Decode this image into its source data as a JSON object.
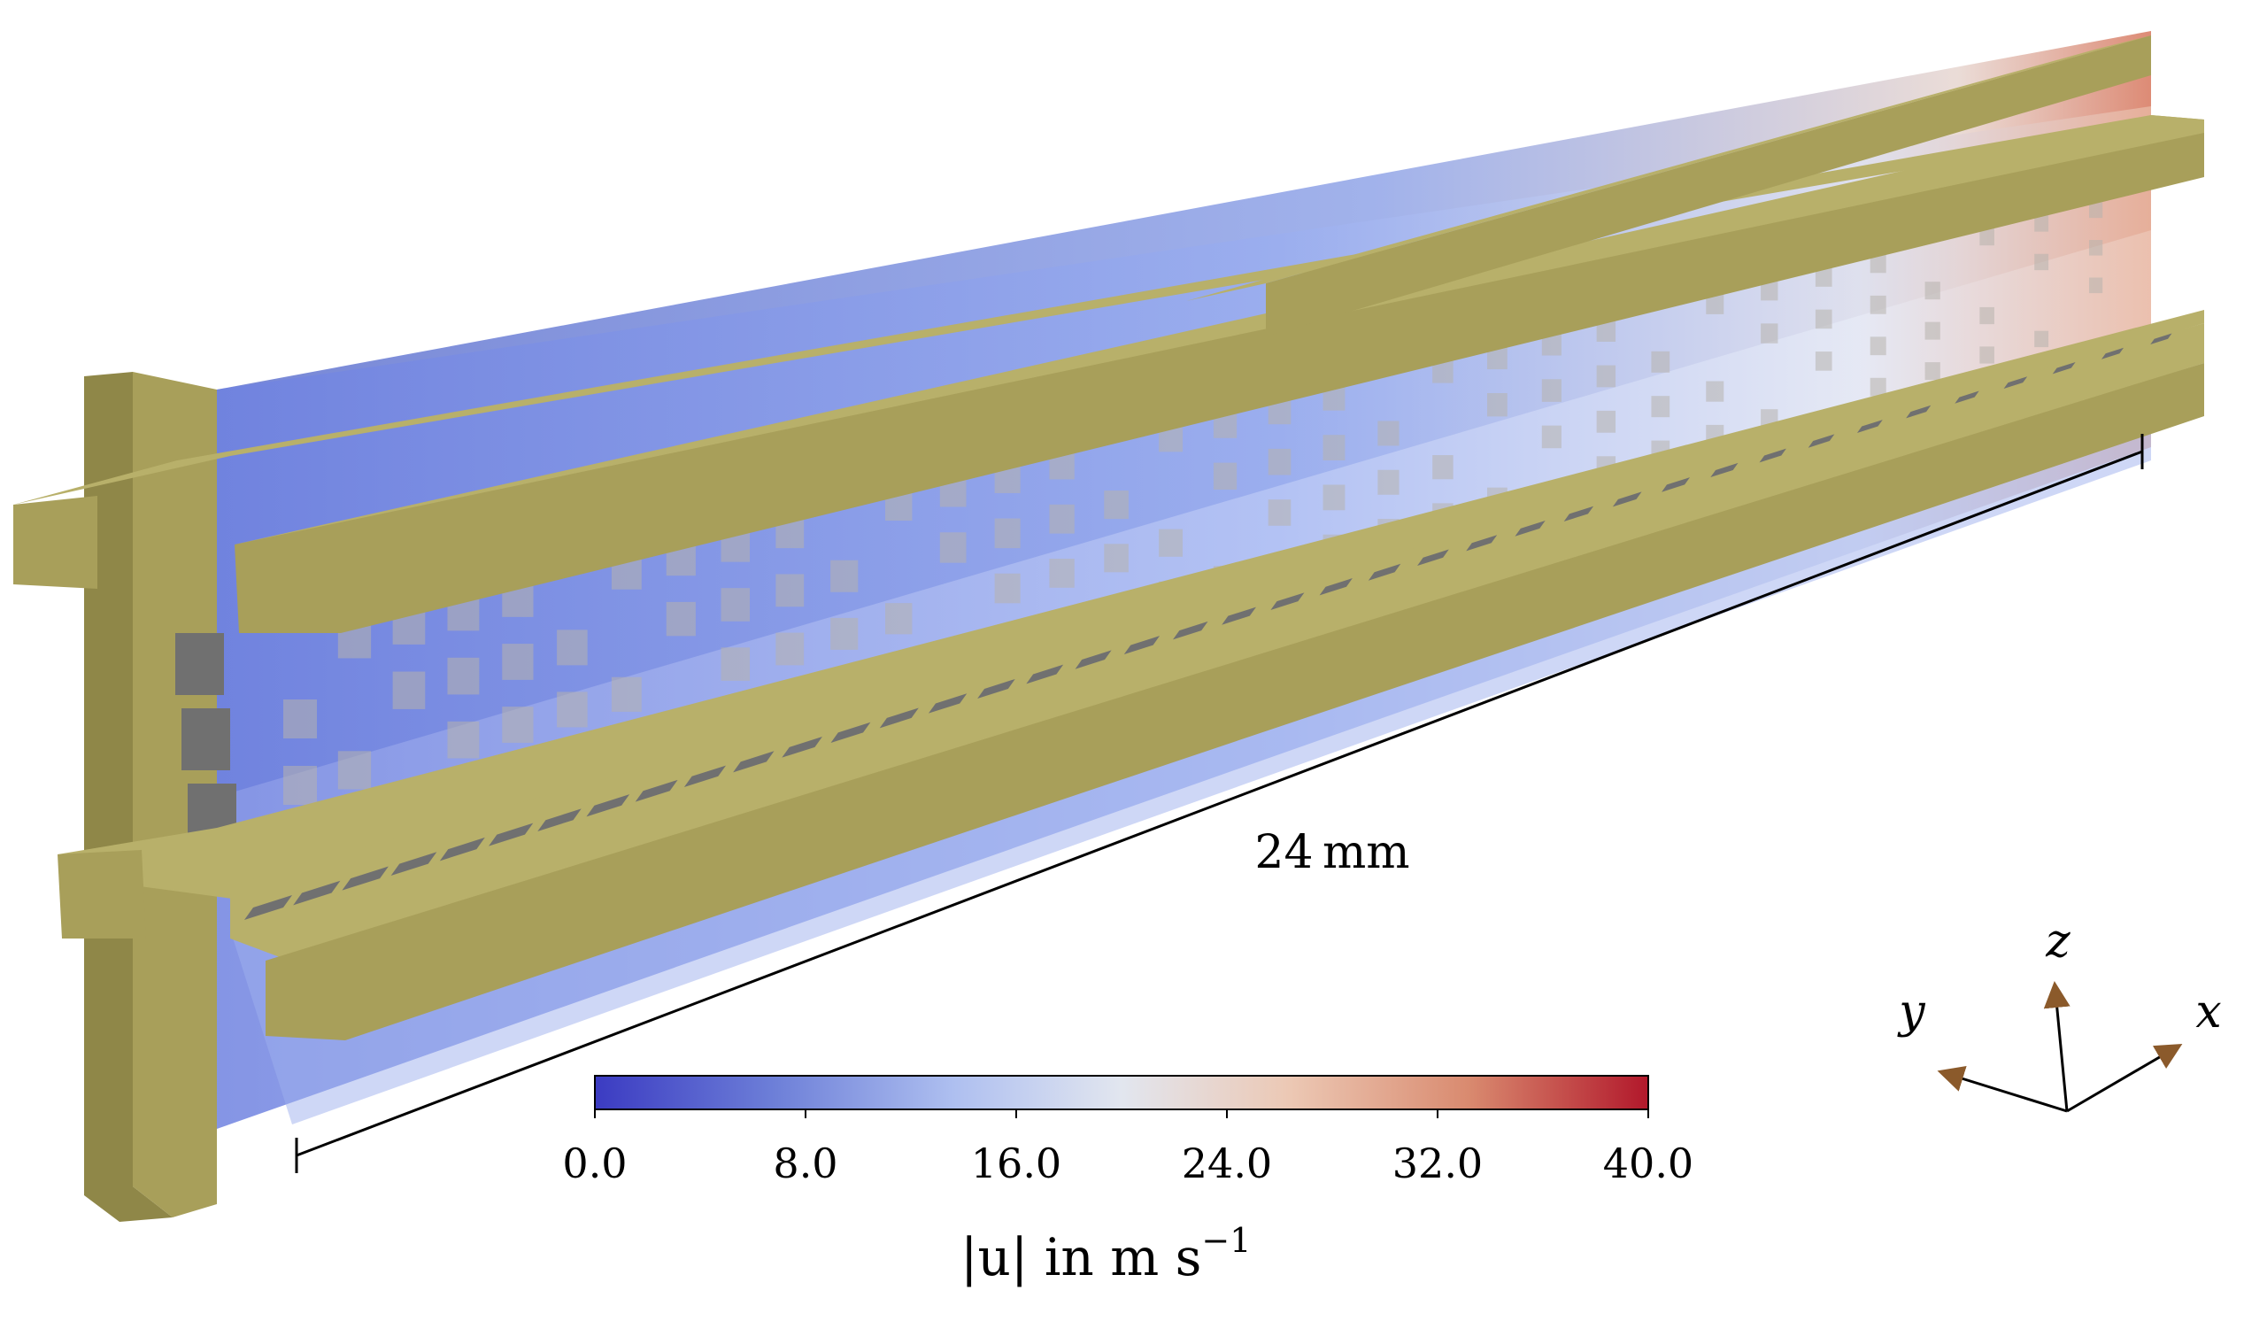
{
  "dimension_label": "24 mm",
  "colorbar": {
    "ticks": [
      "0.0",
      "8.0",
      "16.0",
      "24.0",
      "32.0",
      "40.0"
    ],
    "range": [
      0.0,
      40.0
    ],
    "label_main": "|u| in m s",
    "label_exp": "−1",
    "colormap": [
      "#3b3bc2",
      "#6d7fd8",
      "#aebff0",
      "#e2e6ef",
      "#ecc8b4",
      "#d98a6f",
      "#b2182b"
    ]
  },
  "axes_triad": {
    "x": "x",
    "y": "y",
    "z": "z",
    "arrow_color": "#8b5a2b"
  },
  "colors": {
    "structure": "#a89f5a",
    "structure_top": "#b8b06a",
    "structure_side": "#8f8748",
    "slot": "#707070",
    "plane": "#6f82e0"
  }
}
